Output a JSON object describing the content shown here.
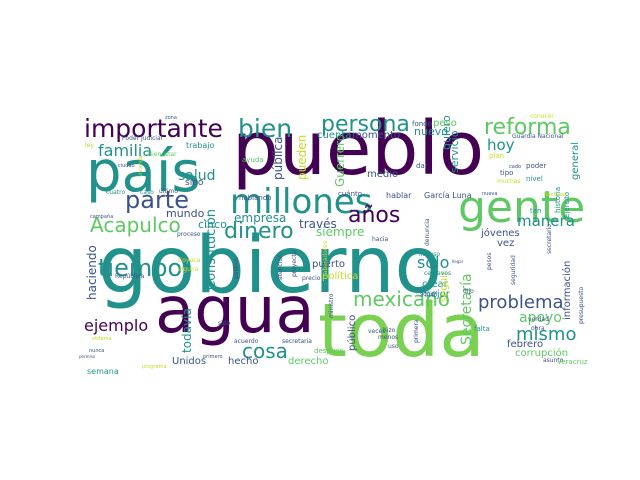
{
  "palette": {
    "purple": "#440154",
    "indigo": "#3b528b",
    "teal": "#21918c",
    "green": "#5ec962",
    "lime": "#7ad151",
    "yellow": "#c2df23"
  },
  "words": [
    {
      "text": "gobierno",
      "color": "teal"
    },
    {
      "text": "pueblo",
      "color": "purple"
    },
    {
      "text": "toda",
      "color": "lime"
    },
    {
      "text": "agua",
      "color": "purple"
    },
    {
      "text": "país",
      "color": "teal"
    },
    {
      "text": "gente",
      "color": "green"
    },
    {
      "text": "millones",
      "color": "teal"
    },
    {
      "text": "importante",
      "color": "purple"
    },
    {
      "text": "bien",
      "color": "teal"
    },
    {
      "text": "persona",
      "color": "teal"
    },
    {
      "text": "reforma",
      "color": "green"
    },
    {
      "text": "parte",
      "color": "indigo"
    },
    {
      "text": "tiempo",
      "color": "teal"
    },
    {
      "text": "Acapulco",
      "color": "green"
    },
    {
      "text": "mexicano",
      "color": "green"
    },
    {
      "text": "problema",
      "color": "indigo"
    },
    {
      "text": "años",
      "color": "purple"
    },
    {
      "text": "dinero",
      "color": "teal"
    },
    {
      "text": "cosa",
      "color": "teal"
    },
    {
      "text": "ejemplo",
      "color": "purple"
    },
    {
      "text": "mismo",
      "color": "teal"
    },
    {
      "text": "familia",
      "color": "teal"
    },
    {
      "text": "salud",
      "color": "teal"
    },
    {
      "text": "hoy",
      "color": "teal"
    },
    {
      "text": "manera",
      "color": "teal"
    },
    {
      "text": "apoyo",
      "color": "green"
    },
    {
      "text": "sólo",
      "color": "teal"
    },
    {
      "text": "Secretaría",
      "color": "green"
    },
    {
      "text": "Constitución",
      "color": "teal"
    },
    {
      "text": "Guerrero",
      "color": "green"
    },
    {
      "text": "empresa",
      "color": "teal"
    },
    {
      "text": "siempre",
      "color": "green"
    },
    {
      "text": "través",
      "color": "indigo"
    },
    {
      "text": "pueden",
      "color": "yellow"
    },
    {
      "text": "pública",
      "color": "indigo"
    },
    {
      "text": "todavía",
      "color": "teal"
    },
    {
      "text": "haciendo",
      "color": "indigo"
    },
    {
      "text": "mundo",
      "color": "indigo"
    },
    {
      "text": "cinco",
      "color": "teal"
    },
    {
      "text": "servicio",
      "color": "teal"
    },
    {
      "text": "quiero",
      "color": "teal"
    },
    {
      "text": "nuevo",
      "color": "teal"
    },
    {
      "text": "cuenta",
      "color": "teal"
    },
    {
      "text": "momento",
      "color": "indigo"
    },
    {
      "text": "medio",
      "color": "indigo"
    },
    {
      "text": "peso",
      "color": "green"
    },
    {
      "text": "general",
      "color": "teal"
    },
    {
      "text": "información",
      "color": "indigo"
    },
    {
      "text": "jóvenes",
      "color": "indigo"
    },
    {
      "text": "vez",
      "color": "indigo"
    },
    {
      "text": "crear",
      "color": "teal"
    },
    {
      "text": "mejor",
      "color": "teal"
    },
    {
      "text": "corrupción",
      "color": "green"
    },
    {
      "text": "febrero",
      "color": "indigo"
    },
    {
      "text": "público",
      "color": "indigo"
    },
    {
      "text": "derecho",
      "color": "green"
    },
    {
      "text": "hecho",
      "color": "indigo"
    },
    {
      "text": "Unidos",
      "color": "indigo"
    },
    {
      "text": "semana",
      "color": "teal"
    },
    {
      "text": "trabajo",
      "color": "teal"
    },
    {
      "text": "sino",
      "color": "indigo"
    },
    {
      "text": "política",
      "color": "yellow"
    },
    {
      "text": "puerto",
      "color": "indigo"
    },
    {
      "text": "seguir",
      "color": "yellow"
    },
    {
      "text": "hablar",
      "color": "indigo"
    },
    {
      "text": "García Luna",
      "color": "indigo"
    },
    {
      "text": "cuánto",
      "color": "indigo"
    },
    {
      "text": "hablando",
      "color": "indigo"
    },
    {
      "text": "dar",
      "color": "indigo"
    },
    {
      "text": "fondo",
      "color": "indigo"
    },
    {
      "text": "plan",
      "color": "yellow"
    },
    {
      "text": "tipo",
      "color": "indigo"
    },
    {
      "text": "muchas",
      "color": "yellow"
    },
    {
      "text": "poder",
      "color": "indigo"
    },
    {
      "text": "nivel",
      "color": "teal"
    },
    {
      "text": "conocer",
      "color": "yellow"
    },
    {
      "text": "Guardia Nacional",
      "color": "indigo"
    },
    {
      "text": "Ejército",
      "color": "teal"
    },
    {
      "text": "historia",
      "color": "teal"
    },
    {
      "text": "secretario",
      "color": "indigo"
    },
    {
      "text": "tan",
      "color": "teal"
    },
    {
      "text": "Poder Judicial",
      "color": "indigo"
    },
    {
      "text": "Bienestar",
      "color": "green"
    },
    {
      "text": "ley",
      "color": "yellow"
    },
    {
      "text": "cuatro",
      "color": "teal"
    },
    {
      "text": "caso",
      "color": "teal"
    },
    {
      "text": "último",
      "color": "indigo"
    },
    {
      "text": "campaña",
      "color": "indigo"
    },
    {
      "text": "ayuda",
      "color": "green"
    },
    {
      "text": "ciudad",
      "color": "indigo"
    },
    {
      "text": "vivienda",
      "color": "yellow"
    },
    {
      "text": "proceso",
      "color": "indigo"
    },
    {
      "text": "Coyuca",
      "color": "yellow"
    },
    {
      "text": "alguna",
      "color": "yellow"
    },
    {
      "text": "República",
      "color": "indigo"
    },
    {
      "text": "político",
      "color": "indigo"
    },
    {
      "text": "atención",
      "color": "indigo"
    },
    {
      "text": "proyecto",
      "color": "indigo"
    },
    {
      "text": "precio",
      "color": "indigo"
    },
    {
      "text": "trabajadores",
      "color": "yellow"
    },
    {
      "text": "hacia",
      "color": "indigo"
    },
    {
      "text": "incluso",
      "color": "teal"
    },
    {
      "text": "centavos",
      "color": "teal"
    },
    {
      "text": "denuncia",
      "color": "indigo"
    },
    {
      "text": "dijo",
      "color": "indigo"
    },
    {
      "text": "pesos",
      "color": "indigo"
    },
    {
      "text": "seguridad",
      "color": "indigo"
    },
    {
      "text": "verdad",
      "color": "indigo"
    },
    {
      "text": "obra",
      "color": "indigo"
    },
    {
      "text": "presupuesto",
      "color": "indigo"
    },
    {
      "text": "nunca",
      "color": "indigo"
    },
    {
      "text": "sistema",
      "color": "yellow"
    },
    {
      "text": "sido",
      "color": "indigo"
    },
    {
      "text": "acuerdo",
      "color": "indigo"
    },
    {
      "text": "secretaria",
      "color": "indigo"
    },
    {
      "text": "ministro",
      "color": "indigo"
    },
    {
      "text": "después",
      "color": "green"
    },
    {
      "text": "veces",
      "color": "indigo"
    },
    {
      "text": "social",
      "color": "indigo"
    },
    {
      "text": "primera",
      "color": "indigo"
    },
    {
      "text": "hizo",
      "color": "indigo"
    },
    {
      "text": "menos",
      "color": "indigo"
    },
    {
      "text": "uso",
      "color": "indigo"
    },
    {
      "text": "falta",
      "color": "teal"
    },
    {
      "text": "asunto",
      "color": "indigo"
    },
    {
      "text": "Veracruz",
      "color": "green"
    },
    {
      "text": "primero",
      "color": "indigo"
    },
    {
      "text": "programa",
      "color": "yellow"
    },
    {
      "text": "permiso",
      "color": "indigo"
    },
    {
      "text": "Nacional",
      "color": "yellow"
    },
    {
      "text": "nueva",
      "color": "indigo"
    },
    {
      "text": "cado",
      "color": "indigo"
    },
    {
      "text": "zona",
      "color": "indigo"
    },
    {
      "text": "llegar",
      "color": "indigo"
    }
  ]
}
